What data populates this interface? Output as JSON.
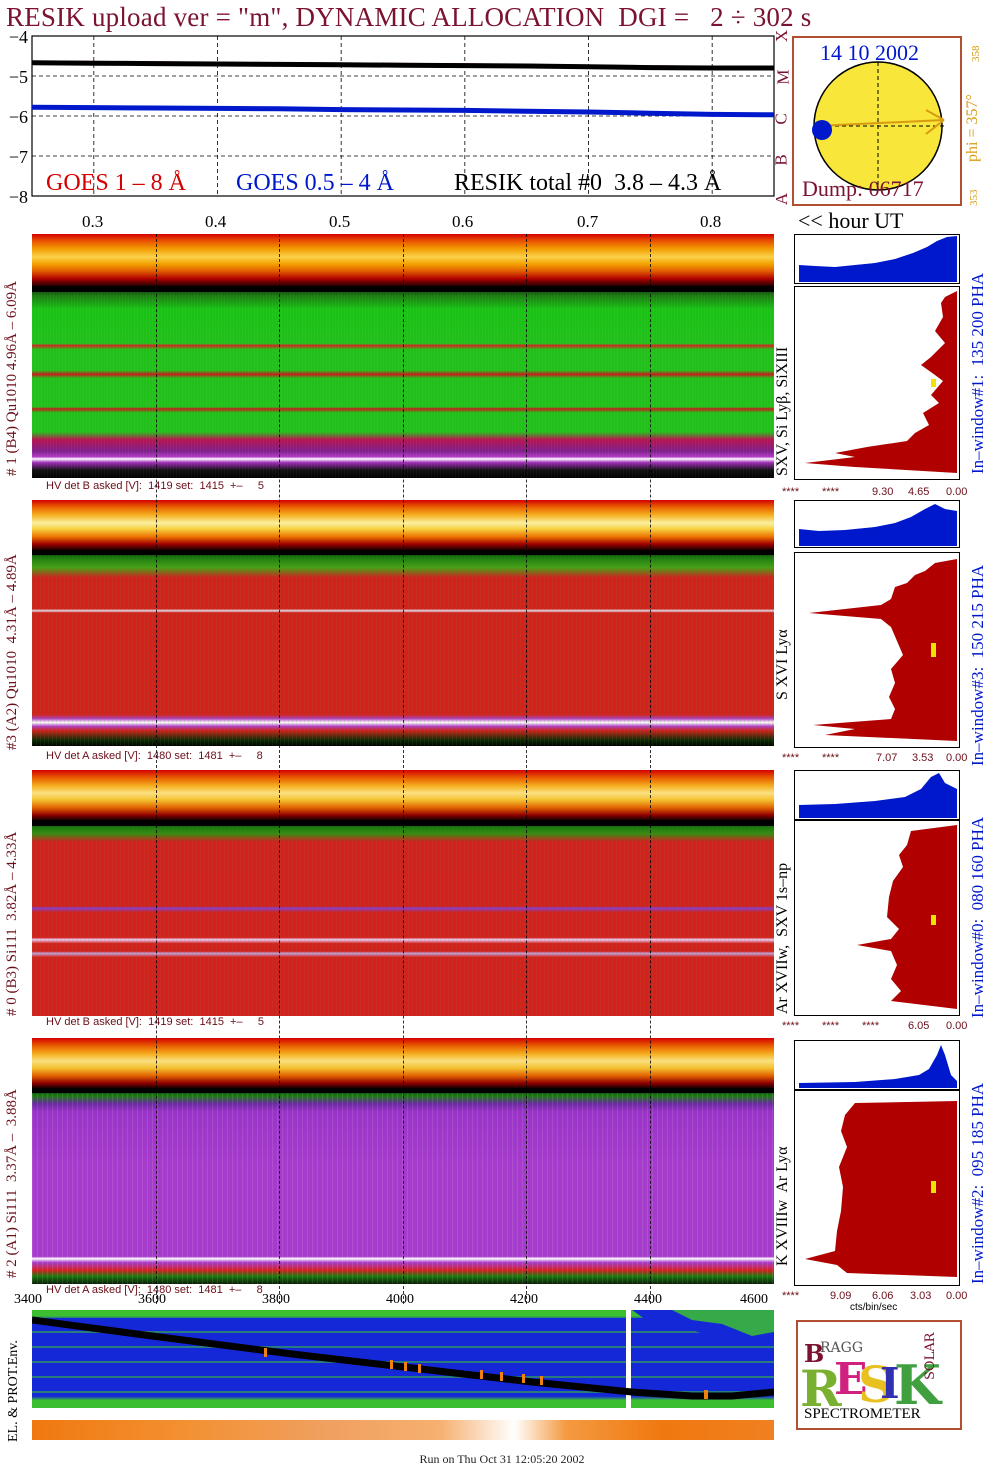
{
  "title": "RESIK upload ver = \"m\", DYNAMIC ALLOCATION  DGI =   2 ÷ 302 s",
  "colors": {
    "goes_long": "#d40000",
    "goes_short": "#0018cc",
    "resik_total": "#000000",
    "title": "#7a1230",
    "ui_window_fill": "#b00000",
    "pha_fill": "#0018cc",
    "orbit_land": "#3cbf2f",
    "orbit_sea": "#1428d8"
  },
  "lightcurve": {
    "legend": [
      {
        "label": "GOES 1 – 8 Å",
        "color": "#d40000"
      },
      {
        "label": "GOES 0.5 – 4 Å",
        "color": "#0018cc"
      },
      {
        "label": "RESIK total #0  3.8 – 4.3 Å",
        "color": "#000000"
      }
    ],
    "yticks": [
      "−4",
      "−5",
      "−6",
      "−7",
      "−8"
    ],
    "class_letters": [
      "X",
      "M",
      "C",
      "B",
      "A"
    ],
    "hour_ticks": [
      "0.3",
      "0.4",
      "0.5",
      "0.6",
      "0.7",
      "0.8"
    ],
    "hour_axis_label": "<< hour UT"
  },
  "sun": {
    "date": "14 10 2002",
    "phi_label": "phi = 357°",
    "phi_sub": "358",
    "phi_low": "353",
    "dump": "Dump: 06717"
  },
  "panels": [
    {
      "side_label": "# 1 (B4) Qu1010 4.96Å – 6.09Å",
      "lines_label": "SXV, Si Lyβ, SiXIII",
      "window_label": "In–window#1:  135 200 PHA",
      "hv": "HV det B asked [V]:  1419 set:  1415  +–     5",
      "axis": [
        "****",
        "****",
        "9.30",
        "4.65",
        "0.00"
      ]
    },
    {
      "side_label": "#3 (A2) Qu1010  4.31Å – 4.89Å",
      "lines_label": "S XVI Lyα",
      "window_label": "In–window#3:  150 215 PHA",
      "hv": "HV det A asked [V]:  1480 set:  1481  +–     8",
      "axis": [
        "****",
        "****",
        "7.07",
        "3.53",
        "0.00"
      ]
    },
    {
      "side_label": "# 0 (B3) Si111  3.82Å – 4.33Å",
      "lines_label": "Ar XVIIw,  SXV 1s–np",
      "window_label": "In–window#0:  080 160 PHA",
      "hv": "HV det B asked [V]:  1419 set:  1415  +–     5",
      "axis": [
        "****",
        "****",
        "****",
        "6.05",
        "0.00"
      ]
    },
    {
      "side_label": "# 2 (A1) Si111  3.37Å –  3.88Å",
      "lines_label": "K XVIIIw  Ar Lyα",
      "window_label": "In–window#2:  095 185 PHA",
      "hv": "HV det A asked [V]:  1480 set:  1481  +–     8",
      "axis": [
        "****",
        "9.09",
        "6.06",
        "3.03",
        "0.00"
      ]
    }
  ],
  "count_axis_label": "cts/bin/sec",
  "orbit": {
    "x_ticks": [
      "3400",
      "3600",
      "3800",
      "4000",
      "4200",
      "4400",
      "4600"
    ],
    "side_label": "EL. & PROT.Env."
  },
  "logo": {
    "letters": "RESIK",
    "small": "BRAGG",
    "solar": "SOLAR",
    "bottom": "SPECTROMETER"
  },
  "footer": "Run on Thu Oct 31 12:05:20 2002",
  "chart_data": [
    {
      "type": "line",
      "title": "RESIK upload ver = \"m\", DYNAMIC ALLOCATION  DGI =   2 ÷ 302 s",
      "xlabel": "<< hour UT",
      "ylabel": "",
      "x": [
        0.25,
        0.3,
        0.35,
        0.4,
        0.45,
        0.5,
        0.55,
        0.6,
        0.65,
        0.7,
        0.75,
        0.8,
        0.85
      ],
      "xlim": [
        0.25,
        0.85
      ],
      "ylim": [
        -8,
        -4
      ],
      "grid": true,
      "series": [
        {
          "name": "GOES 1 – 8 Å",
          "values": [
            -4.65,
            -4.66,
            -4.67,
            -4.68,
            -4.69,
            -4.7,
            -4.71,
            -4.72,
            -4.73,
            -4.75,
            -4.77,
            -4.78,
            -4.78
          ]
        },
        {
          "name": "GOES 0.5 – 4 Å",
          "values": [
            -5.78,
            -5.79,
            -5.8,
            -5.81,
            -5.82,
            -5.84,
            -5.85,
            -5.86,
            -5.88,
            -5.9,
            -5.93,
            -5.96,
            -5.97
          ]
        },
        {
          "name": "RESIK total #0  3.8 – 4.3 Å",
          "values": [
            -4.67,
            -4.68,
            -4.69,
            -4.7,
            -4.71,
            -4.72,
            -4.73,
            -4.74,
            -4.75,
            -4.77,
            -4.79,
            -4.8,
            -4.8
          ]
        }
      ]
    }
  ]
}
